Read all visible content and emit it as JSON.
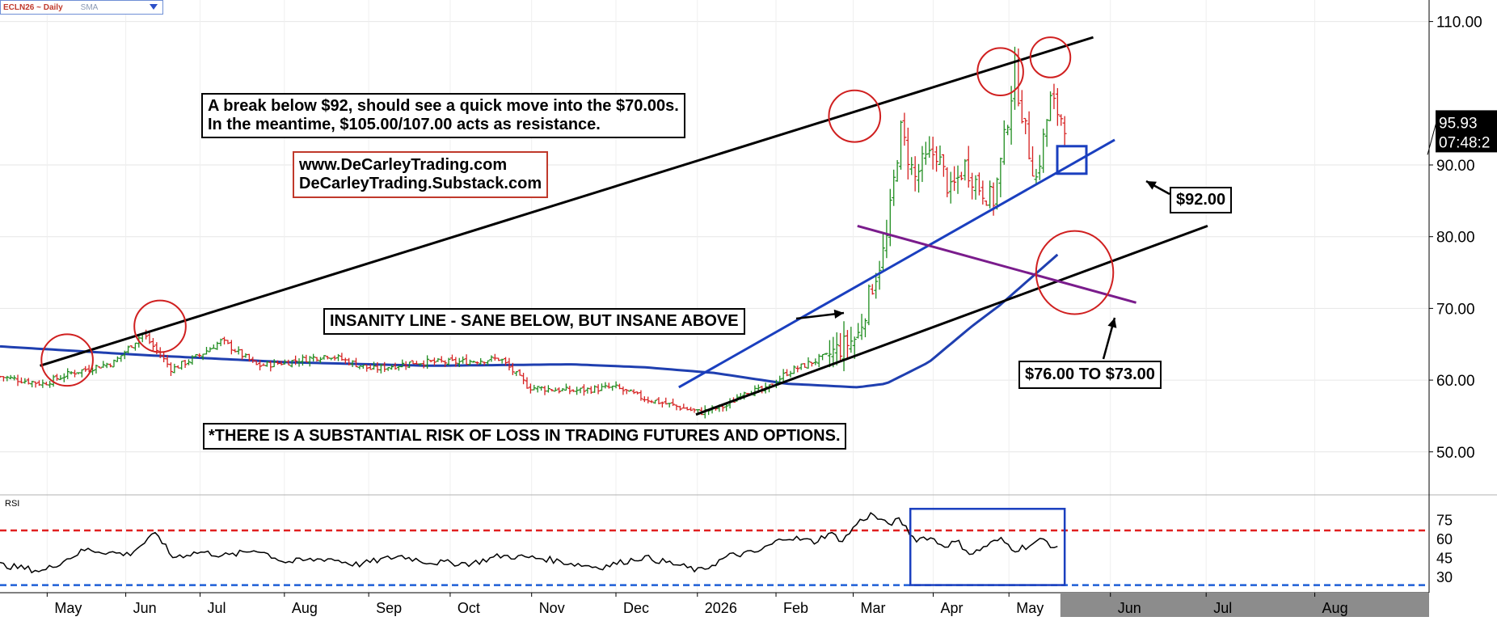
{
  "header": {
    "symbol": "ECLN26 ~ Daily",
    "indicator": "SMA"
  },
  "annotations": {
    "breakdown_l1": "A break below $92, should see a quick move into the $70.00s.",
    "breakdown_l2": "In the meantime, $105.00/107.00 acts as resistance.",
    "site_l1": "www.DeCarleyTrading.com",
    "site_l2": "DeCarleyTrading.Substack.com",
    "insanity": "INSANITY LINE - SANE BELOW, BUT INSANE ABOVE",
    "risk": "*THERE IS A SUBSTANTIAL RISK OF LOSS IN TRADING FUTURES AND OPTIONS.",
    "target": "$76.00 TO $73.00",
    "support": "$92.00"
  },
  "price_badge": {
    "last": "95.93",
    "countdown": "07:48:2"
  },
  "chart_data": [
    {
      "type": "line",
      "title": "ECLN26 ~ Daily",
      "y_axis_side": "right",
      "ylim": [
        44,
        113
      ],
      "yticks": [
        50,
        60,
        70,
        80,
        90,
        110
      ],
      "ytick_labels": [
        "50.00",
        "60.00",
        "70.00",
        "80.00",
        "90.00",
        "110.00"
      ],
      "xtick_labels": [
        "May",
        "Jun",
        "Jul",
        "Aug",
        "Sep",
        "Oct",
        "Nov",
        "Dec",
        "2026",
        "Feb",
        "Mar",
        "Apr",
        "May",
        "Jun",
        "Jul",
        "Aug"
      ],
      "grid": true,
      "series": [
        {
          "role": "price_bars",
          "color_up": "#1e8c1e",
          "color_down": "#d62020",
          "anchors_x": [
            0,
            0.03,
            0.05,
            0.08,
            0.1,
            0.12,
            0.14,
            0.155,
            0.18,
            0.2,
            0.23,
            0.26,
            0.29,
            0.32,
            0.35,
            0.37,
            0.4,
            0.43,
            0.45,
            0.47,
            0.49,
            0.51,
            0.52,
            0.535,
            0.55,
            0.58,
            0.6,
            0.61,
            0.62,
            0.63,
            0.64,
            0.645,
            0.655,
            0.665,
            0.675,
            0.685,
            0.695,
            0.7,
            0.71,
            0.72,
            0.725,
            0.735,
            0.745
          ],
          "anchors_price": [
            60.5,
            59.5,
            61,
            62.5,
            66.5,
            61.5,
            63.5,
            65.5,
            62,
            62.5,
            63.5,
            61.5,
            62.5,
            62.5,
            63,
            59,
            58.5,
            59,
            57.5,
            56.5,
            55.5,
            56.5,
            58.5,
            58.5,
            61,
            63.5,
            66,
            73,
            79,
            95,
            88,
            90,
            92,
            86,
            90,
            87,
            85,
            90,
            103,
            92,
            88,
            99,
            95.93
          ]
        },
        {
          "role": "moving_average",
          "color": "#1f3fb0",
          "anchors_x": [
            0,
            0.1,
            0.2,
            0.3,
            0.4,
            0.45,
            0.5,
            0.55,
            0.6,
            0.62,
            0.65,
            0.68,
            0.7,
            0.72,
            0.74
          ],
          "anchors_price": [
            64.7,
            63.5,
            62.5,
            62,
            62.2,
            61.8,
            61,
            59.5,
            59,
            59.5,
            62.5,
            67.5,
            70.5,
            74,
            77.5
          ]
        }
      ],
      "trendlines": [
        {
          "color": "#000000",
          "width": 3,
          "p1": [
            0.028,
            62
          ],
          "p2": [
            0.765,
            107.8
          ]
        },
        {
          "color": "#000000",
          "width": 3,
          "p1": [
            0.487,
            55.2
          ],
          "p2": [
            0.845,
            81.5
          ]
        },
        {
          "color": "#1a3fbf",
          "width": 3,
          "p1": [
            0.475,
            59
          ],
          "p2": [
            0.78,
            93.5
          ]
        },
        {
          "color": "#7a1c8c",
          "width": 3,
          "p1": [
            0.6,
            81.5
          ],
          "p2": [
            0.795,
            70.8
          ]
        }
      ],
      "circles": [
        {
          "x": 0.047,
          "price": 62.8,
          "radius_x": 0.018,
          "radius_y": 3.6
        },
        {
          "x": 0.112,
          "price": 67.5,
          "radius_x": 0.018,
          "radius_y": 3.6
        },
        {
          "x": 0.598,
          "price": 96.8,
          "radius_x": 0.018,
          "radius_y": 3.6
        },
        {
          "x": 0.7,
          "price": 103,
          "radius_x": 0.016,
          "radius_y": 3.3
        },
        {
          "x": 0.735,
          "price": 105,
          "radius_x": 0.014,
          "radius_y": 2.8
        },
        {
          "x": 0.752,
          "price": 75,
          "radius_x": 0.027,
          "radius_y": 5.8
        }
      ],
      "support_box": {
        "x": 0.75,
        "price": 90.7
      }
    },
    {
      "type": "line",
      "title": "RSI",
      "y_axis_side": "right",
      "ylim": [
        18,
        95
      ],
      "yticks": [
        30,
        45,
        60,
        75
      ],
      "ytick_labels": [
        "30",
        "45",
        "60",
        "75"
      ],
      "reference_lines": [
        {
          "value": 67,
          "color": "#e02020",
          "style": "dashed"
        },
        {
          "value": 24,
          "color": "#1f5fd6",
          "style": "dashed"
        }
      ],
      "series": [
        {
          "name": "RSI",
          "color": "#000000",
          "anchors_x": [
            0,
            0.03,
            0.06,
            0.09,
            0.11,
            0.12,
            0.14,
            0.16,
            0.18,
            0.2,
            0.23,
            0.25,
            0.28,
            0.3,
            0.33,
            0.35,
            0.38,
            0.4,
            0.42,
            0.45,
            0.47,
            0.49,
            0.51,
            0.53,
            0.55,
            0.57,
            0.58,
            0.59,
            0.6,
            0.61,
            0.62,
            0.63,
            0.64,
            0.65,
            0.66,
            0.67,
            0.68,
            0.69,
            0.7,
            0.71,
            0.72,
            0.73,
            0.74
          ],
          "values": [
            40,
            35,
            52,
            48,
            65,
            46,
            50,
            47,
            52,
            42,
            45,
            40,
            47,
            42,
            41,
            47,
            45,
            41,
            38,
            46,
            41,
            35,
            47,
            50,
            62,
            58,
            65,
            59,
            73,
            80,
            72,
            75,
            60,
            62,
            55,
            58,
            48,
            55,
            60,
            52,
            55,
            60,
            52
          ]
        }
      ],
      "highlight_box": {
        "x_range": [
          0.637,
          0.745
        ],
        "value_range": [
          24,
          84
        ]
      }
    }
  ]
}
